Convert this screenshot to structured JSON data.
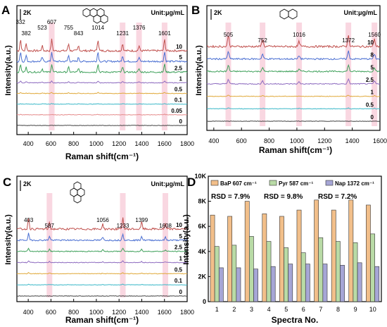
{
  "chart_data": [
    {
      "panel": "A",
      "type": "line",
      "title": "",
      "xlabel": "Raman shift(cm⁻¹)",
      "ylabel": "Intensity(a.u.)",
      "xlim": [
        300,
        1800
      ],
      "x_ticks": [
        "400",
        "600",
        "800",
        "1000",
        "1200",
        "1400",
        "1600",
        "1800"
      ],
      "scale_bar": "2K",
      "unit_label": "Unit:μg/mL",
      "molecule_icon": "benzo-a-pyrene-structure-icon",
      "peaks": [
        332,
        382,
        523,
        607,
        755,
        843,
        1014,
        1231,
        1376,
        1601
      ],
      "highlight_bands": [
        607,
        1231,
        1376,
        1601
      ],
      "series": [
        {
          "name": "10",
          "color": "#c0504d",
          "amp": 1.0
        },
        {
          "name": "5",
          "color": "#4a6fd2",
          "amp": 0.85
        },
        {
          "name": "2.5",
          "color": "#3ea05a",
          "amp": 0.7
        },
        {
          "name": "1",
          "color": "#8e6cc0",
          "amp": 0.14
        },
        {
          "name": "0.5",
          "color": "#e0a93a",
          "amp": 0.08
        },
        {
          "name": "0.1",
          "color": "#3bb8c8",
          "amp": 0.05
        },
        {
          "name": "0.05",
          "color": "#e58b8b",
          "amp": 0.04
        },
        {
          "name": "0",
          "color": "#444444",
          "amp": 0.0
        }
      ]
    },
    {
      "panel": "B",
      "type": "line",
      "title": "",
      "xlabel": "Raman shift(cm⁻¹)",
      "ylabel": "Intensity(a.u.)",
      "xlim": [
        350,
        1600
      ],
      "x_ticks": [
        "400",
        "600",
        "800",
        "1000",
        "1200",
        "1400",
        "1600"
      ],
      "scale_bar": "2K",
      "unit_label": "Unit:μg/mL",
      "molecule_icon": "naphthalene-structure-icon",
      "peaks": [
        505,
        752,
        1016,
        1372,
        1560
      ],
      "highlight_bands": [
        505,
        752,
        1016,
        1372,
        1560
      ],
      "series": [
        {
          "name": "10",
          "color": "#c0504d",
          "amp": 1.0
        },
        {
          "name": "8",
          "color": "#4a6fd2",
          "amp": 0.7
        },
        {
          "name": "5",
          "color": "#3ea05a",
          "amp": 0.55
        },
        {
          "name": "2.5",
          "color": "#8e6cc0",
          "amp": 0.4
        },
        {
          "name": "1",
          "color": "#e0a93a",
          "amp": 0.1
        },
        {
          "name": "0.5",
          "color": "#3bb8c8",
          "amp": 0.07
        },
        {
          "name": "0",
          "color": "#444444",
          "amp": 0.0
        }
      ]
    },
    {
      "panel": "C",
      "type": "line",
      "title": "",
      "xlabel": "Raman shift(cm⁻¹)",
      "ylabel": "Intensity(a.u.)",
      "xlim": [
        300,
        1800
      ],
      "x_ticks": [
        "400",
        "600",
        "800",
        "1000",
        "1200",
        "1400",
        "1600",
        "1800"
      ],
      "scale_bar": "2K",
      "unit_label": "Unit:μg/mL",
      "molecule_icon": "pyrene-structure-icon",
      "peaks": [
        403,
        587,
        1056,
        1233,
        1399,
        1608
      ],
      "highlight_bands": [
        587,
        1233,
        1608
      ],
      "series": [
        {
          "name": "10",
          "color": "#c0504d",
          "amp": 1.0
        },
        {
          "name": "5",
          "color": "#4a6fd2",
          "amp": 0.6
        },
        {
          "name": "2.5",
          "color": "#3ea05a",
          "amp": 0.3
        },
        {
          "name": "1",
          "color": "#8e6cc0",
          "amp": 0.15
        },
        {
          "name": "0.5",
          "color": "#e0a93a",
          "amp": 0.1
        },
        {
          "name": "0.1",
          "color": "#3bb8c8",
          "amp": 0.05
        },
        {
          "name": "0",
          "color": "#444444",
          "amp": 0.0
        }
      ]
    },
    {
      "panel": "D",
      "type": "bar",
      "title": "",
      "xlabel": "Spectra No.",
      "ylabel": "Intensity(a.u.)",
      "ylim": [
        0,
        10000
      ],
      "y_ticks": [
        "0",
        "2K",
        "4K",
        "6K",
        "8K",
        "10K"
      ],
      "categories": [
        "1",
        "2",
        "3",
        "4",
        "5",
        "6",
        "7",
        "8",
        "9",
        "10"
      ],
      "legend_position": "top",
      "series": [
        {
          "name": "BaP 607 cm⁻¹",
          "color": "#f2bf8a",
          "values": [
            6900,
            6800,
            8000,
            7000,
            6800,
            7300,
            8100,
            7300,
            8100,
            7700
          ]
        },
        {
          "name": "Pyr 587 cm⁻¹",
          "color": "#b9dba6",
          "values": [
            4400,
            4500,
            5200,
            4800,
            4300,
            3900,
            5100,
            4800,
            4700,
            5400
          ]
        },
        {
          "name": "Nap 1372 cm⁻¹",
          "color": "#a6a6d6",
          "values": [
            2700,
            2700,
            2600,
            2800,
            3000,
            3000,
            3000,
            2900,
            3100,
            2800
          ]
        }
      ],
      "annotations": [
        "RSD = 7.9%",
        "RSD = 9.8%",
        "RSD = 7.2%"
      ]
    }
  ],
  "panel_labels": [
    "A",
    "B",
    "C",
    "D"
  ]
}
